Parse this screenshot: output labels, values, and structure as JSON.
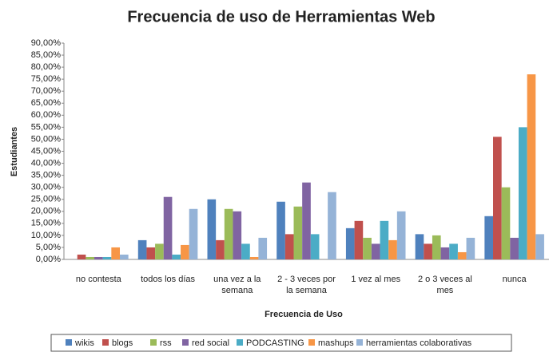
{
  "chart_data": {
    "type": "bar",
    "title": "Frecuencia de uso de Herramientas Web",
    "x_label": "Frecuencia de Uso",
    "y_label": "Estudiantes",
    "categories": [
      "no contesta",
      "todos los días",
      "una vez a la semana",
      "2 - 3 veces por la semana",
      "1 vez al mes",
      "2 o 3 veces al mes",
      "nunca"
    ],
    "series": [
      {
        "name": "wikis",
        "color": "#4f81bd",
        "values": [
          0,
          8,
          25,
          24,
          13,
          10.5,
          18
        ]
      },
      {
        "name": "blogs",
        "color": "#c0504d",
        "values": [
          2,
          5,
          8,
          10.5,
          16,
          6.5,
          51
        ]
      },
      {
        "name": "rss",
        "color": "#9bbb59",
        "values": [
          1,
          6.5,
          21,
          22,
          9,
          10,
          30
        ]
      },
      {
        "name": "red social",
        "color": "#8064a2",
        "values": [
          1,
          26,
          20,
          32,
          6.5,
          5,
          9
        ]
      },
      {
        "name": "PODCASTING",
        "color": "#4bacc6",
        "values": [
          1,
          2,
          6.5,
          10.5,
          16,
          6.5,
          55
        ]
      },
      {
        "name": "mashups",
        "color": "#f79646",
        "values": [
          5,
          6,
          1,
          0,
          8,
          3,
          77
        ]
      },
      {
        "name": "herramientas colaborativas",
        "color": "#95b3d7",
        "values": [
          2,
          21,
          9,
          28,
          20,
          9,
          10.5
        ]
      }
    ],
    "ylim": [
      0,
      90
    ],
    "yticks": [
      {
        "value": 0,
        "label": "0,00%"
      },
      {
        "value": 5,
        "label": "5,00%"
      },
      {
        "value": 10,
        "label": "10,00%"
      },
      {
        "value": 15,
        "label": "15,00%"
      },
      {
        "value": 20,
        "label": "20,00%"
      },
      {
        "value": 25,
        "label": "25,00%"
      },
      {
        "value": 30,
        "label": "30,00%"
      },
      {
        "value": 35,
        "label": "35,00%"
      },
      {
        "value": 40,
        "label": "40,00%"
      },
      {
        "value": 45,
        "label": "45,00%"
      },
      {
        "value": 50,
        "label": "50,00%"
      },
      {
        "value": 55,
        "label": "55,00%"
      },
      {
        "value": 60,
        "label": "60,00%"
      },
      {
        "value": 65,
        "label": "65,00%"
      },
      {
        "value": 70,
        "label": "70,00%"
      },
      {
        "value": 75,
        "label": "75,00%"
      },
      {
        "value": 80,
        "label": "80,00%"
      },
      {
        "value": 85,
        "label": "85,00%"
      },
      {
        "value": 90,
        "label": "90,00%"
      }
    ],
    "grid": false,
    "legend": "bottom"
  }
}
